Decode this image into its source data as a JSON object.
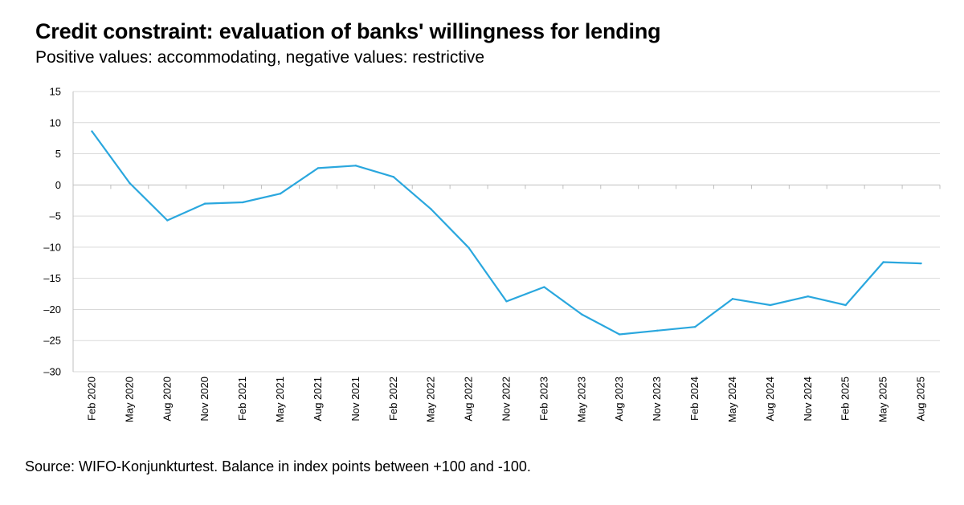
{
  "title": "Credit constraint: evaluation of banks' willingness for lending",
  "subtitle": "Positive values: accommodating, negative values: restrictive",
  "source": "Source: WIFO-Konjunkturtest. Balance in index points between +100 and -100.",
  "colors": {
    "line": "#2aa7de",
    "grid": "#d9d9d9",
    "axis": "#bfbfbf"
  },
  "chart_data": {
    "type": "line",
    "title": "Credit constraint: evaluation of banks' willingness for lending",
    "xlabel": "",
    "ylabel": "",
    "ylim": [
      -30,
      15
    ],
    "yticks": [
      15,
      10,
      5,
      0,
      -5,
      -10,
      -15,
      -20,
      -25,
      -30
    ],
    "grid": true,
    "legend": "none",
    "categories": [
      "Feb 2020",
      "May 2020",
      "Aug 2020",
      "Nov 2020",
      "Feb 2021",
      "May 2021",
      "Aug 2021",
      "Nov 2021",
      "Feb 2022",
      "May 2022",
      "Aug 2022",
      "Nov 2022",
      "Feb 2023",
      "May 2023",
      "Aug 2023",
      "Nov 2023",
      "Feb 2024",
      "May 2024",
      "Aug 2024",
      "Nov 2024",
      "Feb 2025",
      "May 2025",
      "Aug 2025"
    ],
    "series": [
      {
        "values": [
          8.6,
          0.3,
          -5.7,
          -3.0,
          -2.8,
          -1.4,
          2.7,
          3.1,
          1.3,
          -3.9,
          -10.1,
          -18.7,
          -16.4,
          -20.8,
          -24.0,
          -23.4,
          -22.8,
          -18.3,
          -19.3,
          -17.9,
          -19.3,
          -12.4,
          -12.6
        ]
      }
    ]
  }
}
